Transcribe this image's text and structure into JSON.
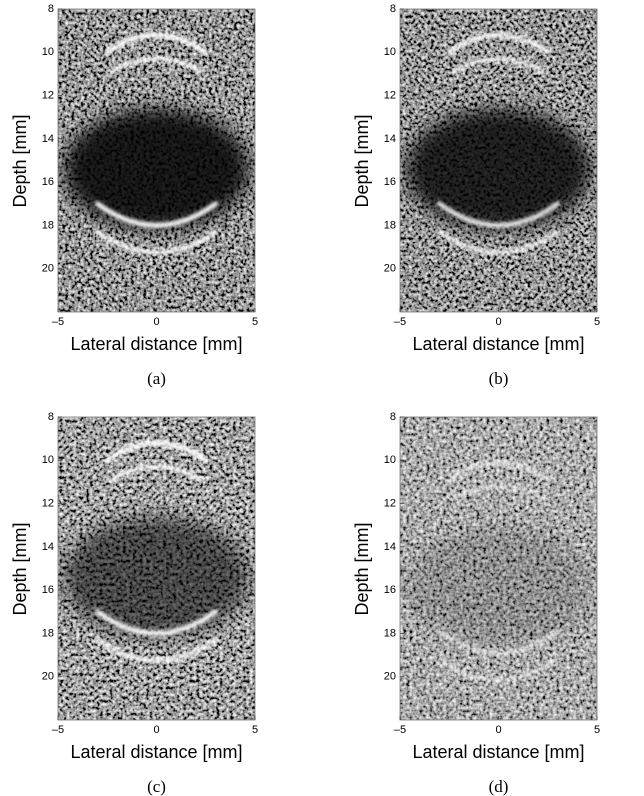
{
  "chart_data": [
    {
      "type": "image",
      "caption": "(a)",
      "xlabel": "Lateral distance [mm]",
      "ylabel": "Depth [mm]",
      "xlim": [
        -5,
        5
      ],
      "ylim": [
        8,
        22
      ],
      "y_inverted": true,
      "xticks": [
        {
          "value": -5,
          "label": "–5"
        },
        0,
        5
      ],
      "yticks": [
        8,
        10,
        12,
        14,
        16,
        18,
        20
      ]
    },
    {
      "type": "image",
      "caption": "(b)",
      "xlabel": "Lateral distance [mm]",
      "ylabel": "Depth [mm]",
      "xlim": [
        -5,
        5
      ],
      "ylim": [
        8,
        22
      ],
      "y_inverted": true,
      "xticks": [
        {
          "value": -5,
          "label": "–5"
        },
        0,
        5
      ],
      "yticks": [
        8,
        10,
        12,
        14,
        16,
        18,
        20
      ]
    },
    {
      "type": "image",
      "caption": "(c)",
      "xlabel": "Lateral distance [mm]",
      "ylabel": "Depth [mm]",
      "xlim": [
        -5,
        5
      ],
      "ylim": [
        8,
        22
      ],
      "y_inverted": true,
      "xticks": [
        {
          "value": -5,
          "label": "–5"
        },
        0,
        5
      ],
      "yticks": [
        8,
        10,
        12,
        14,
        16,
        18,
        20
      ]
    },
    {
      "type": "image",
      "caption": "(d)",
      "xlabel": "Lateral distance [mm]",
      "ylabel": "Depth [mm]",
      "xlim": [
        -5,
        5
      ],
      "ylim": [
        8,
        22
      ],
      "y_inverted": true,
      "xticks": [
        {
          "value": -5,
          "label": "–5"
        },
        0,
        5
      ],
      "yticks": [
        8,
        10,
        12,
        14,
        16,
        18,
        20
      ]
    }
  ]
}
